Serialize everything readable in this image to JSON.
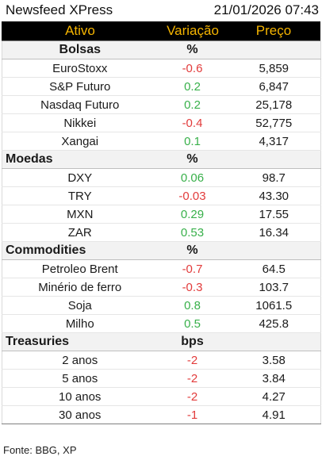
{
  "header": {
    "title": "Newsfeed XPress",
    "datetime": "21/01/2026 07:43"
  },
  "columns": {
    "asset": "Ativo",
    "change": "Variação",
    "price": "Preço"
  },
  "colors": {
    "header_bg": "#000000",
    "header_text": "#f5b400",
    "negative": "#e23b3b",
    "positive": "#38b04a"
  },
  "sections": {
    "bolsas": {
      "title": "Bolsas",
      "unit": "%",
      "rows": [
        {
          "name": "EuroStoxx",
          "change": "-0.6",
          "price": "5,859"
        },
        {
          "name": "S&P Futuro",
          "change": "0.2",
          "price": "6,847"
        },
        {
          "name": "Nasdaq Futuro",
          "change": "0.2",
          "price": "25,178"
        },
        {
          "name": "Nikkei",
          "change": "-0.4",
          "price": "52,775"
        },
        {
          "name": "Xangai",
          "change": "0.1",
          "price": "4,317"
        }
      ]
    },
    "moedas": {
      "title": "Moedas",
      "unit": "%",
      "rows": [
        {
          "name": "DXY",
          "change": "0.06",
          "price": "98.7"
        },
        {
          "name": "TRY",
          "change": "-0.03",
          "price": "43.30"
        },
        {
          "name": "MXN",
          "change": "0.29",
          "price": "17.55"
        },
        {
          "name": "ZAR",
          "change": "0.53",
          "price": "16.34"
        }
      ]
    },
    "commodities": {
      "title": "Commodities",
      "unit": "%",
      "rows": [
        {
          "name": "Petroleo Brent",
          "change": "-0.7",
          "price": "64.5"
        },
        {
          "name": "Minério de ferro",
          "change": "-0.3",
          "price": "103.7"
        },
        {
          "name": "Soja",
          "change": "0.8",
          "price": "1061.5"
        },
        {
          "name": "Milho",
          "change": "0.5",
          "price": "425.8"
        }
      ]
    },
    "treasuries": {
      "title": "Treasuries",
      "unit": "bps",
      "rows": [
        {
          "name": "2 anos",
          "change": "-2",
          "price": "3.58"
        },
        {
          "name": "5 anos",
          "change": "-2",
          "price": "3.84"
        },
        {
          "name": "10 anos",
          "change": "-2",
          "price": "4.27"
        },
        {
          "name": "30 anos",
          "change": "-1",
          "price": "4.91"
        }
      ]
    }
  },
  "footer": {
    "source": "Fonte: BBG, XP"
  }
}
